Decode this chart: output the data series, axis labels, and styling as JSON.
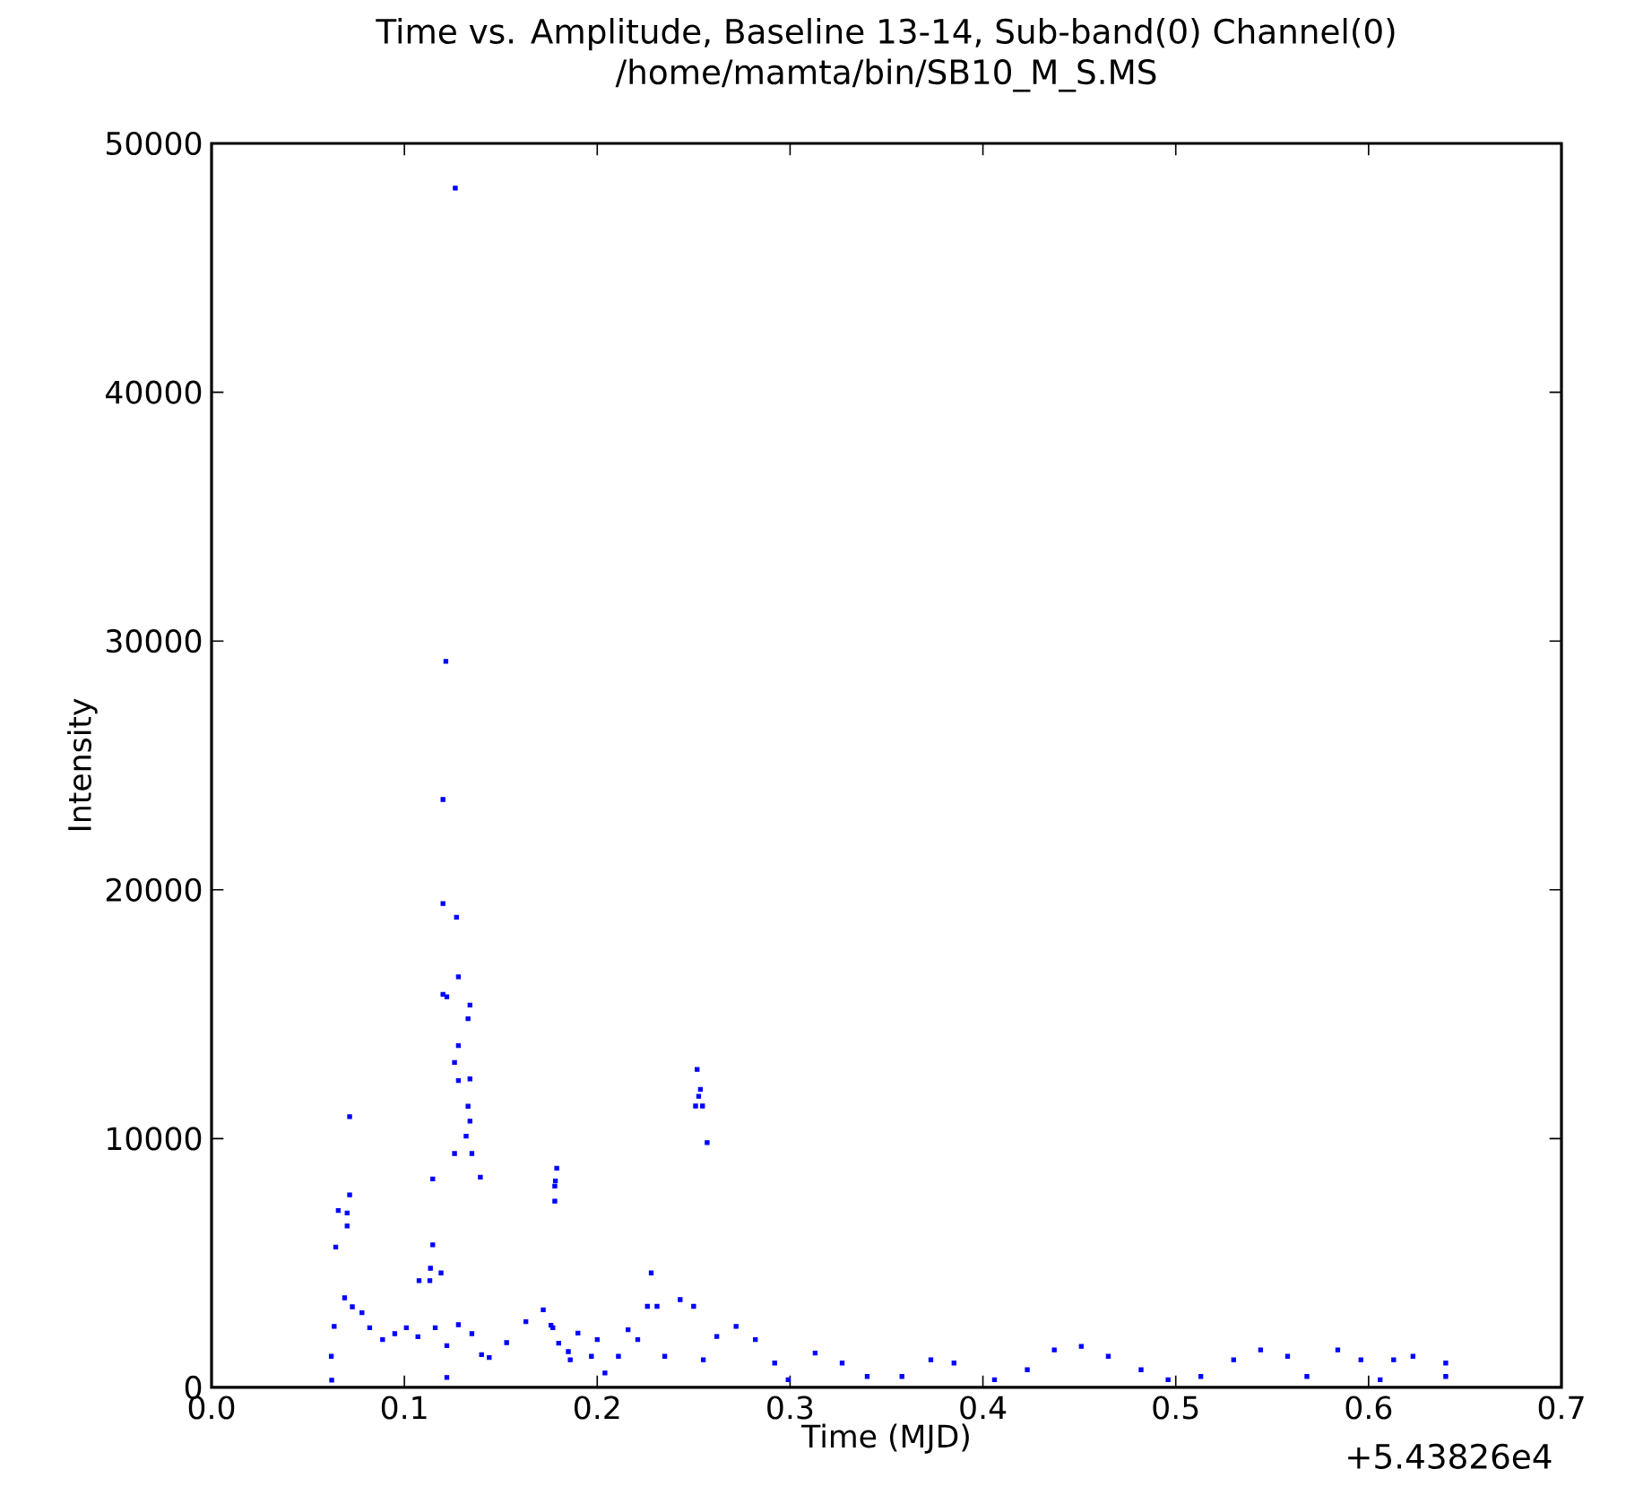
{
  "chart_data": {
    "type": "scatter",
    "title": "Time vs. Amplitude, Baseline 13-14, Sub-band(0)  Channel(0)",
    "subtitle": "/home/mamta/bin/SB10_M_S.MS",
    "xlabel": "Time (MJD)",
    "ylabel": "Intensity",
    "annotations": [
      "+5.43826e4"
    ],
    "xlim": [
      0,
      0.7
    ],
    "ylim": [
      0,
      50000
    ],
    "xticks": [
      {
        "value": 0,
        "label": "0.0"
      },
      {
        "value": 0.1,
        "label": "0.1"
      },
      {
        "value": 0.2,
        "label": "0.2"
      },
      {
        "value": 0.3,
        "label": "0.3"
      },
      {
        "value": 0.4,
        "label": "0.4"
      },
      {
        "value": 0.5,
        "label": "0.5"
      },
      {
        "value": 0.6,
        "label": "0.6"
      },
      {
        "value": 0.7,
        "label": "0.7"
      }
    ],
    "yticks": [
      0,
      10000,
      20000,
      30000,
      40000,
      50000
    ],
    "marker": "square",
    "grid": false,
    "series": [
      {
        "color": "#0000ff",
        "x": [
          0.1264,
          0.1215,
          0.12,
          0.12,
          0.127,
          0.128,
          0.12,
          0.122,
          0.134,
          0.133,
          0.128,
          0.126,
          0.128,
          0.134,
          0.133,
          0.134,
          0.132,
          0.126,
          0.135,
          0.1394,
          0.1147,
          0.0716,
          0.0716,
          0.0703,
          0.0657,
          0.0703,
          0.0644,
          0.1147,
          0.1135,
          0.119,
          0.1076,
          0.1132,
          0.0623,
          0.122,
          0.179,
          0.178,
          0.1783,
          0.178,
          0.2518,
          0.2535,
          0.251,
          0.2546,
          0.257,
          0.2526,
          0.0621,
          0.0636,
          0.069,
          0.073,
          0.078,
          0.082,
          0.0887,
          0.095,
          0.101,
          0.107,
          0.116,
          0.122,
          0.128,
          0.135,
          0.14,
          0.144,
          0.153,
          0.163,
          0.172,
          0.177,
          0.185,
          0.176,
          0.18,
          0.186,
          0.19,
          0.197,
          0.2,
          0.204,
          0.211,
          0.216,
          0.221,
          0.226,
          0.228,
          0.231,
          0.235,
          0.243,
          0.25,
          0.255,
          0.262,
          0.272,
          0.282,
          0.292,
          0.299,
          0.313,
          0.327,
          0.34,
          0.358,
          0.373,
          0.385,
          0.406,
          0.423,
          0.437,
          0.451,
          0.465,
          0.482,
          0.496,
          0.513,
          0.53,
          0.544,
          0.558,
          0.568,
          0.584,
          0.596,
          0.606,
          0.613,
          0.623,
          0.64,
          0.64
        ],
        "values": [
          48200,
          29180,
          23630,
          19450,
          18900,
          16500,
          15800,
          15700,
          15370,
          14820,
          13740,
          13060,
          12330,
          12400,
          11300,
          10700,
          10100,
          9400,
          9400,
          8450,
          8380,
          10880,
          7740,
          7010,
          7110,
          6490,
          5640,
          5730,
          4790,
          4600,
          4290,
          4290,
          290,
          400,
          8810,
          8090,
          8300,
          7490,
          12780,
          11980,
          11310,
          11310,
          9840,
          11700,
          1250,
          2450,
          3600,
          3240,
          3000,
          2400,
          1920,
          2160,
          2400,
          2040,
          2400,
          1680,
          2520,
          2160,
          1320,
          1200,
          1800,
          2640,
          3120,
          2400,
          1440,
          2500,
          1780,
          1110,
          2180,
          1250,
          1920,
          580,
          1250,
          2320,
          1920,
          3260,
          4600,
          3260,
          1250,
          3530,
          3260,
          1110,
          2050,
          2450,
          1920,
          980,
          310,
          1380,
          980,
          440,
          440,
          1110,
          980,
          310,
          710,
          1510,
          1650,
          1250,
          710,
          310,
          440,
          1110,
          1510,
          1250,
          440,
          1510,
          1110,
          310,
          1110,
          1250,
          980,
          440
        ]
      }
    ]
  }
}
